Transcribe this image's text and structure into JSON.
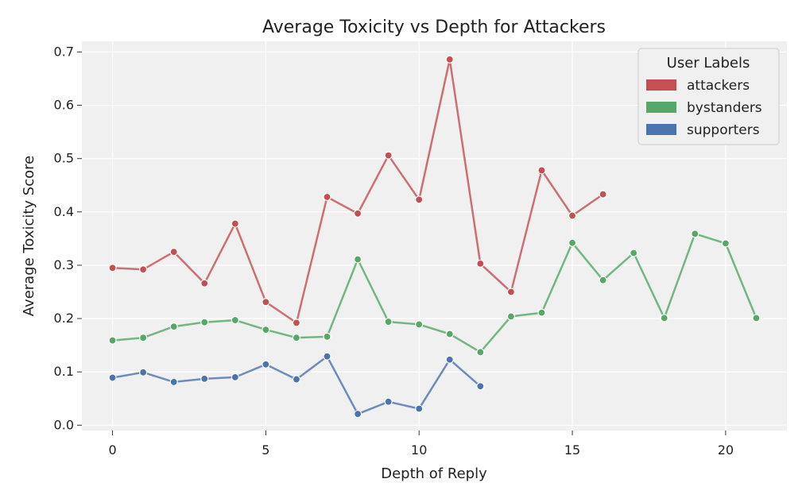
{
  "chart_data": {
    "type": "line",
    "title": "Average Toxicity vs Depth for Attackers",
    "xlabel": "Depth of Reply",
    "ylabel": "Average Toxicity Score",
    "xlim": [
      -1,
      22
    ],
    "ylim": [
      -0.01,
      0.72
    ],
    "xticks": [
      0,
      5,
      10,
      15,
      20
    ],
    "xtick_labels": [
      "0",
      "5",
      "10",
      "15",
      "20"
    ],
    "yticks": [
      0.0,
      0.1,
      0.2,
      0.3,
      0.4,
      0.5,
      0.6,
      0.7
    ],
    "ytick_labels": [
      "0.0",
      "0.1",
      "0.2",
      "0.3",
      "0.4",
      "0.5",
      "0.6",
      "0.7"
    ],
    "grid": true,
    "legend": {
      "title": "User Labels",
      "placement": "top-right"
    },
    "series": [
      {
        "name": "attackers",
        "color": "#c44e52",
        "x": [
          0,
          1,
          2,
          3,
          4,
          5,
          6,
          7,
          8,
          9,
          10,
          11,
          12,
          13,
          14,
          15,
          16
        ],
        "values": [
          0.295,
          0.292,
          0.325,
          0.266,
          0.378,
          0.231,
          0.192,
          0.428,
          0.397,
          0.506,
          0.423,
          0.686,
          0.303,
          0.25,
          0.478,
          0.393,
          0.433
        ]
      },
      {
        "name": "bystanders",
        "color": "#55a868",
        "x": [
          0,
          1,
          2,
          3,
          4,
          5,
          6,
          7,
          8,
          9,
          10,
          11,
          12,
          13,
          14,
          15,
          16,
          17,
          18,
          19,
          20,
          21
        ],
        "values": [
          0.159,
          0.164,
          0.185,
          0.193,
          0.197,
          0.179,
          0.164,
          0.166,
          0.311,
          0.194,
          0.189,
          0.171,
          0.137,
          0.204,
          0.211,
          0.342,
          0.272,
          0.323,
          0.201,
          0.359,
          0.341,
          0.201
        ]
      },
      {
        "name": "supporters",
        "color": "#4c72b0",
        "x": [
          0,
          1,
          2,
          3,
          4,
          5,
          6,
          7,
          8,
          9,
          10,
          11,
          12
        ],
        "values": [
          0.089,
          0.099,
          0.081,
          0.087,
          0.09,
          0.114,
          0.086,
          0.129,
          0.021,
          0.044,
          0.031,
          0.123,
          0.073
        ]
      }
    ]
  }
}
